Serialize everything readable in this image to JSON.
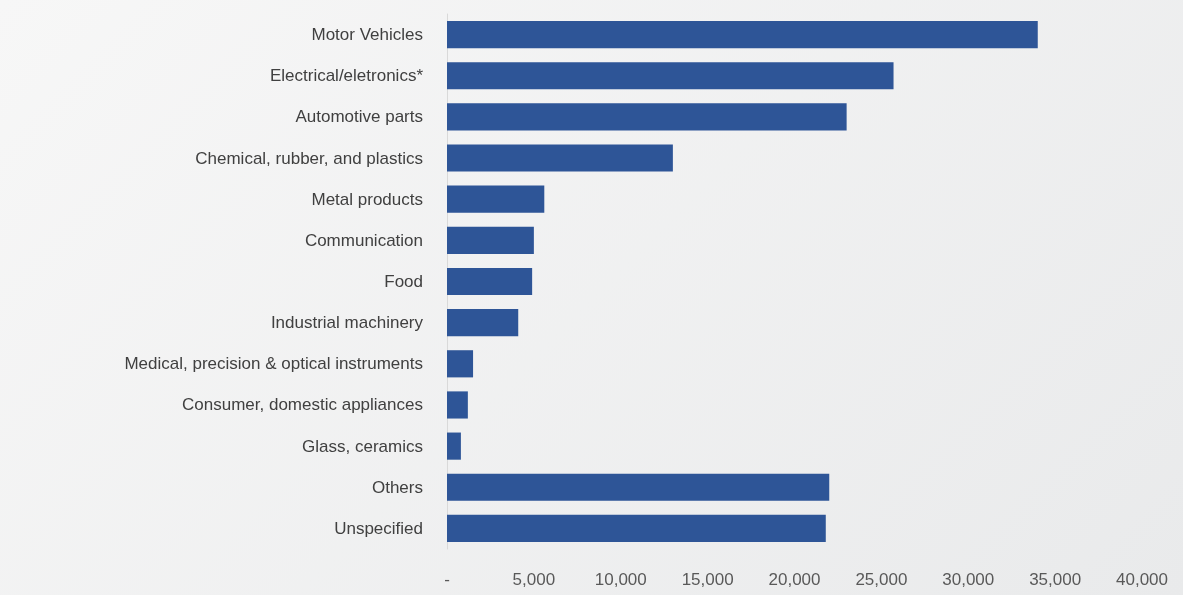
{
  "chart_data": {
    "type": "bar",
    "orientation": "horizontal",
    "categories": [
      "Motor Vehicles",
      "Electrical/eletronics*",
      "Automotive parts",
      "Chemical, rubber, and plastics",
      "Metal products",
      "Communication",
      "Food",
      "Industrial machinery",
      "Medical, precision & optical instruments",
      "Consumer, domestic appliances",
      "Glass, ceramics",
      "Others",
      "Unspecified"
    ],
    "values": [
      34000,
      25700,
      23000,
      13000,
      5600,
      5000,
      4900,
      4100,
      1500,
      1200,
      800,
      22000,
      21800
    ],
    "color": "#2e5597",
    "xlim": [
      0,
      40000
    ],
    "xticks": [
      {
        "value": 0,
        "label": "-"
      },
      {
        "value": 5000,
        "label": "5,000"
      },
      {
        "value": 10000,
        "label": "10,000"
      },
      {
        "value": 15000,
        "label": "15,000"
      },
      {
        "value": 20000,
        "label": "20,000"
      },
      {
        "value": 25000,
        "label": "25,000"
      },
      {
        "value": 30000,
        "label": "30,000"
      },
      {
        "value": 35000,
        "label": "35,000"
      },
      {
        "value": 40000,
        "label": "40,000"
      }
    ],
    "grid": false
  }
}
